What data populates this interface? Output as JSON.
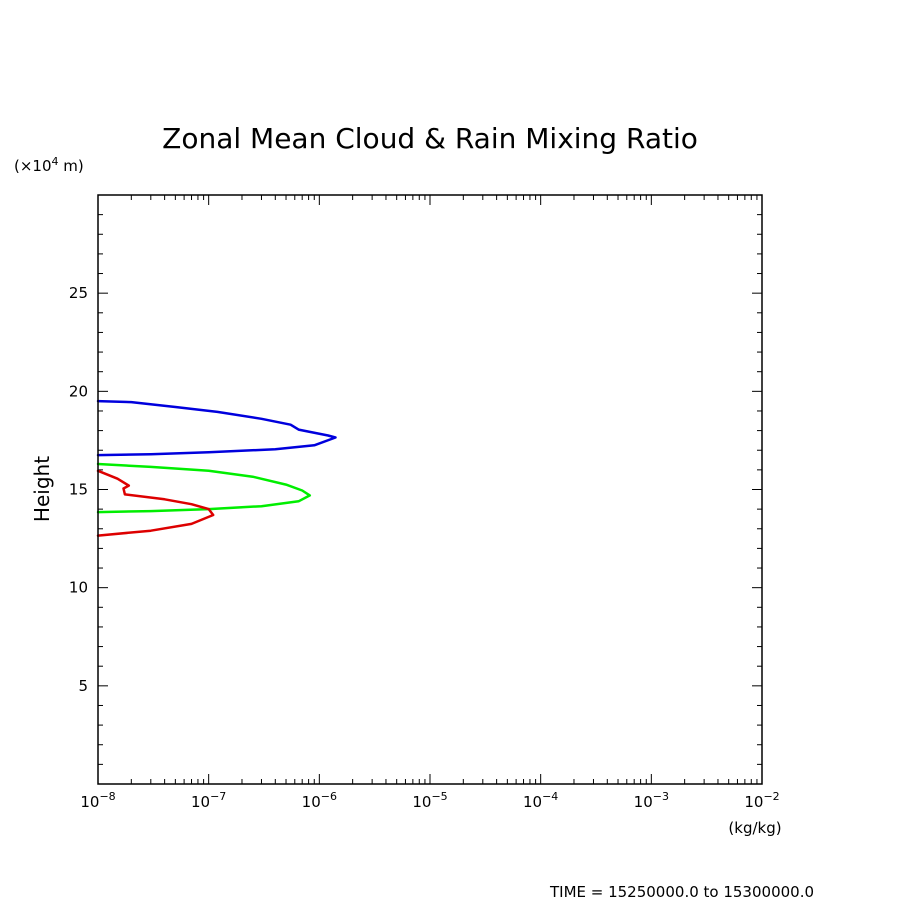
{
  "chart_data": {
    "type": "line",
    "title": "Zonal Mean Cloud & Rain Mixing Ratio",
    "ylabel": "Height",
    "yunit_prefix": "(×10",
    "yunit_exp": "4",
    "yunit_suffix": " m)",
    "xunit": "(kg/kg)",
    "xscale": "log",
    "xlim": [
      1e-08,
      0.01
    ],
    "ylim": [
      0,
      30
    ],
    "grid": false,
    "x_ticks": [
      {
        "value": 1e-08,
        "base": "10",
        "exp": "−8"
      },
      {
        "value": 1e-07,
        "base": "10",
        "exp": "−7"
      },
      {
        "value": 1e-06,
        "base": "10",
        "exp": "−6"
      },
      {
        "value": 1e-05,
        "base": "10",
        "exp": "−5"
      },
      {
        "value": 0.0001,
        "base": "10",
        "exp": "−4"
      },
      {
        "value": 0.001,
        "base": "10",
        "exp": "−3"
      },
      {
        "value": 0.01,
        "base": "10",
        "exp": "−2"
      }
    ],
    "y_ticks": [
      {
        "value": 5,
        "label": "5"
      },
      {
        "value": 10,
        "label": "10"
      },
      {
        "value": 15,
        "label": "15"
      },
      {
        "value": 20,
        "label": "20"
      },
      {
        "value": 25,
        "label": "25"
      }
    ],
    "series": [
      {
        "color": "#0000dd",
        "points": [
          [
            1e-08,
            19.5
          ],
          [
            2e-08,
            19.45
          ],
          [
            5e-08,
            19.2
          ],
          [
            1.2e-07,
            18.95
          ],
          [
            3e-07,
            18.6
          ],
          [
            5.5e-07,
            18.3
          ],
          [
            6.5e-07,
            18.05
          ],
          [
            8e-07,
            17.95
          ],
          [
            1.2e-06,
            17.75
          ],
          [
            1.4e-06,
            17.65
          ],
          [
            9e-07,
            17.25
          ],
          [
            4e-07,
            17.05
          ],
          [
            1e-07,
            16.9
          ],
          [
            3e-08,
            16.8
          ],
          [
            1e-08,
            16.75
          ]
        ]
      },
      {
        "color": "#00ee00",
        "points": [
          [
            1e-08,
            16.3
          ],
          [
            3e-08,
            16.15
          ],
          [
            1e-07,
            15.95
          ],
          [
            2.5e-07,
            15.65
          ],
          [
            5e-07,
            15.25
          ],
          [
            7e-07,
            14.95
          ],
          [
            8.2e-07,
            14.7
          ],
          [
            6.5e-07,
            14.4
          ],
          [
            3e-07,
            14.15
          ],
          [
            1e-07,
            14.0
          ],
          [
            3e-08,
            13.9
          ],
          [
            1e-08,
            13.85
          ]
        ]
      },
      {
        "color": "#dd0000",
        "points": [
          [
            1e-08,
            15.95
          ],
          [
            1.5e-08,
            15.55
          ],
          [
            1.9e-08,
            15.2
          ],
          [
            1.7e-08,
            15.05
          ],
          [
            1.75e-08,
            14.75
          ],
          [
            4e-08,
            14.5
          ],
          [
            7e-08,
            14.25
          ],
          [
            1e-07,
            14.0
          ],
          [
            1.1e-07,
            13.7
          ],
          [
            7e-08,
            13.25
          ],
          [
            3e-08,
            12.9
          ],
          [
            1e-08,
            12.65
          ]
        ]
      }
    ]
  },
  "footer": {
    "time_range": "TIME = 15250000.0 to 15300000.0"
  }
}
